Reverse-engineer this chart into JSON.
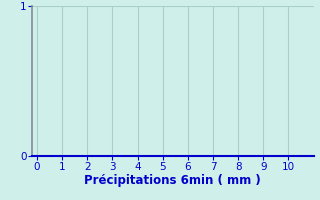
{
  "title": "",
  "xlabel": "Précipitations 6min ( mm )",
  "ylabel": "",
  "xlim": [
    -0.2,
    11
  ],
  "ylim": [
    0,
    1
  ],
  "xticks": [
    0,
    1,
    2,
    3,
    4,
    5,
    6,
    7,
    8,
    9,
    10
  ],
  "yticks": [
    0,
    1
  ],
  "background_color": "#cff0ea",
  "plot_bg_color": "#cff0ea",
  "grid_color": "#aacfcb",
  "axis_color": "#0000cc",
  "tick_color": "#0000cc",
  "label_color": "#0000cc",
  "xlabel_fontsize": 8.5,
  "tick_fontsize": 7.5,
  "left_spine_color": "#888899",
  "fig_width": 3.2,
  "fig_height": 2.0,
  "dpi": 100
}
